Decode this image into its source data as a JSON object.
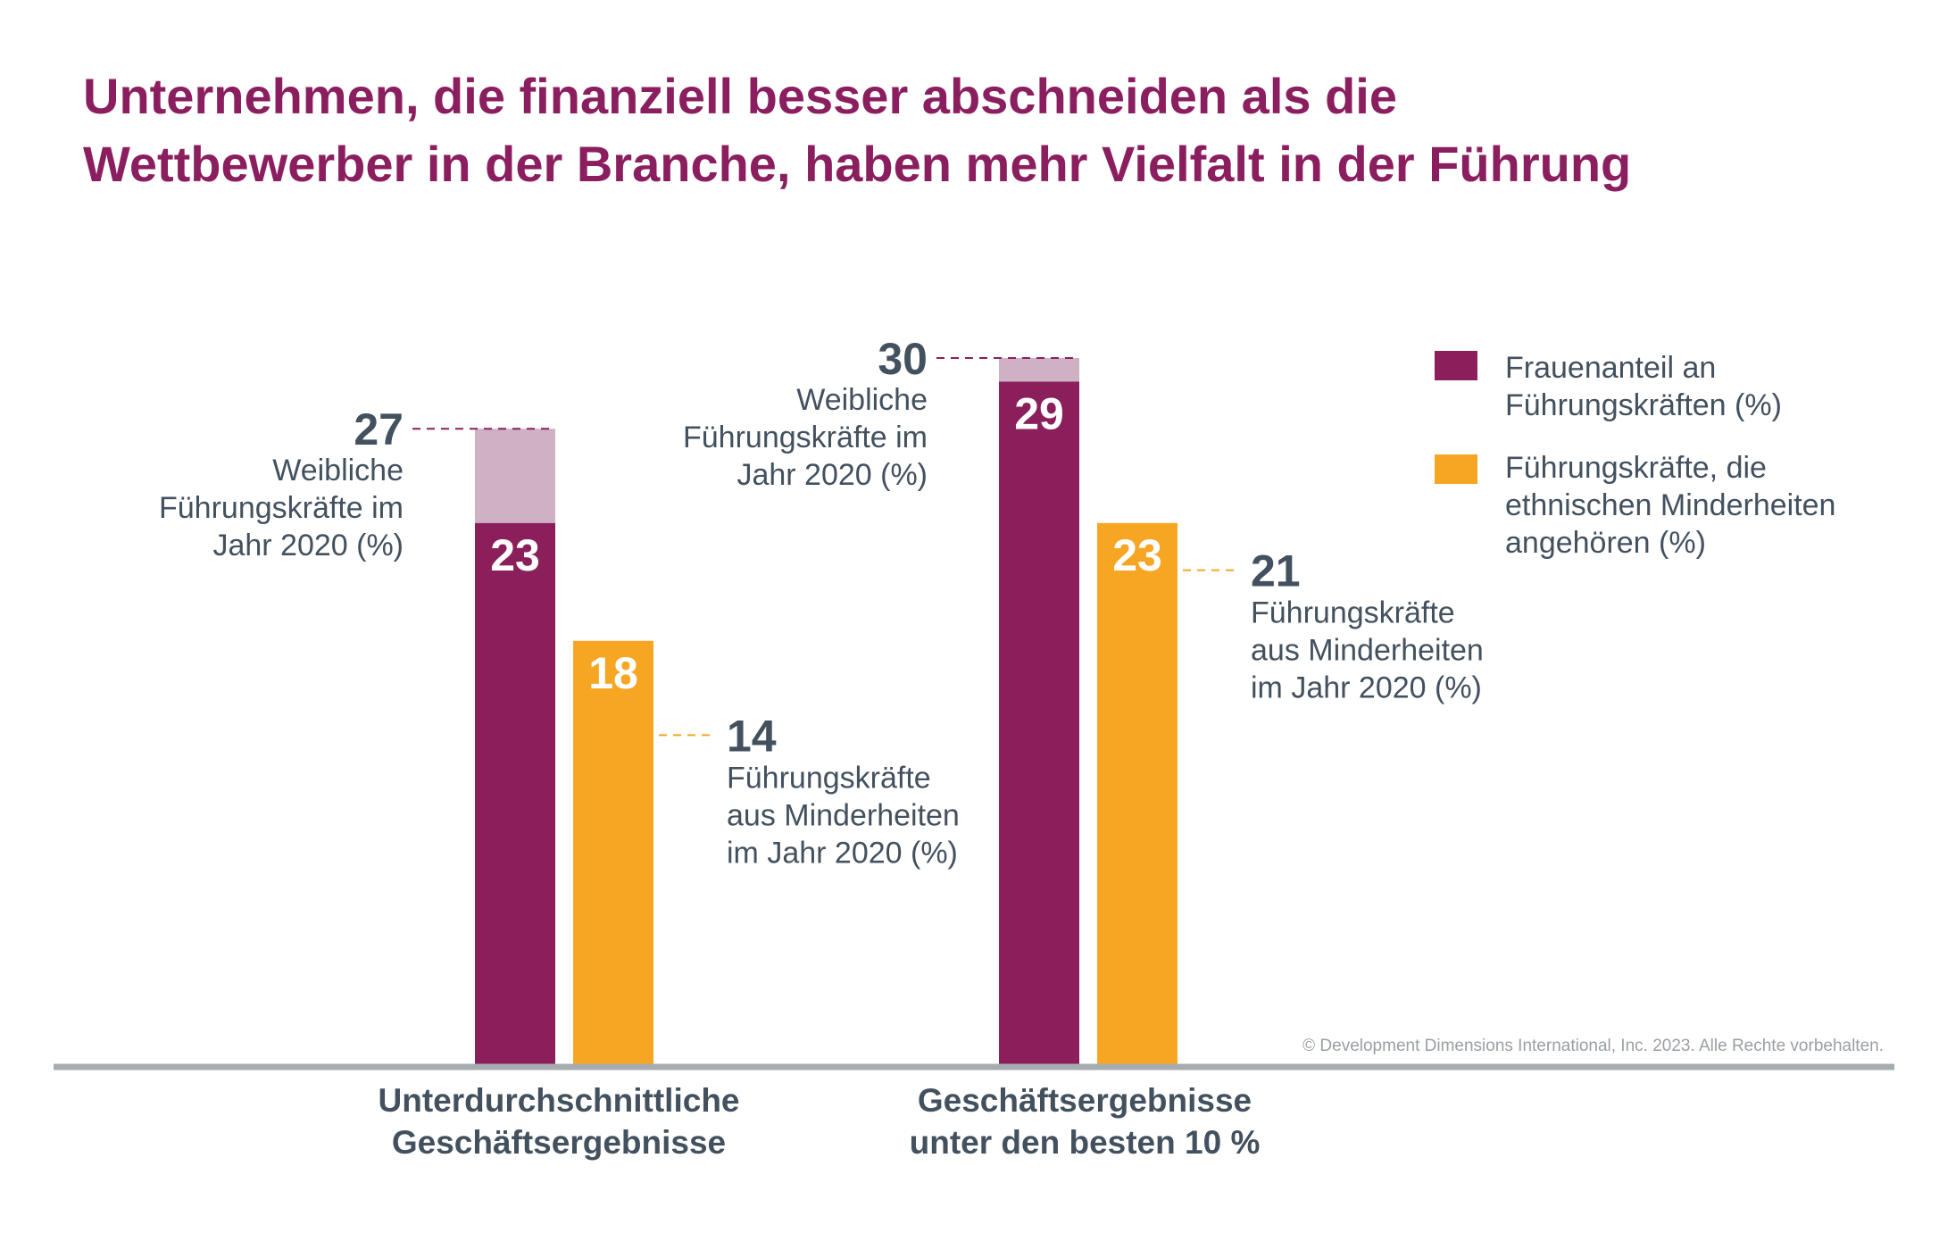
{
  "colors": {
    "title": "#8b1e5f",
    "women": "#8a1f5c",
    "women_prior": "#cfb1c4",
    "minorities": "#f7a623",
    "text": "#43515f",
    "baseline": "#a7acb1",
    "white": "#ffffff"
  },
  "chart_data": {
    "type": "bar",
    "title": "Unternehmen, die finanziell besser abschneiden als die Wettbewerber in der Branche, haben mehr Vielfalt in der Führung",
    "title_lines": [
      "Unternehmen, die finanziell besser abschneiden als die",
      "Wettbewerber in der Branche, haben mehr Vielfalt in der Führung"
    ],
    "categories": [
      [
        "Unterdurchschnittliche",
        "Geschäftsergebnisse"
      ],
      [
        "Geschäftsergebnisse",
        "unter den besten 10 %"
      ]
    ],
    "ylim": [
      0,
      33
    ],
    "series": [
      {
        "name": "Frauenanteil an Führungskräften (%)",
        "legend_lines": [
          "Frauenanteil an",
          "Führungskräften (%)"
        ],
        "color_key": "women",
        "values": [
          23,
          29
        ],
        "value_labels": [
          "23",
          "29"
        ],
        "prior_values": [
          27,
          30
        ],
        "prior_labels": [
          "27",
          "30"
        ],
        "prior_note_lines": [
          "Weibliche",
          "Führungskräfte im",
          "Jahr 2020 (%)"
        ]
      },
      {
        "name": "Führungskräfte, die ethnischen Minderheiten angehören (%)",
        "legend_lines": [
          "Führungskräfte, die",
          "ethnischen Minderheiten",
          "angehören (%)"
        ],
        "color_key": "minorities",
        "values": [
          18,
          23
        ],
        "value_labels": [
          "18",
          "23"
        ],
        "prior_values": [
          14,
          21
        ],
        "prior_labels": [
          "14",
          "21"
        ],
        "prior_note_lines": [
          "Führungskräfte",
          "aus Minderheiten",
          "im Jahr 2020 (%)"
        ]
      }
    ],
    "copyright": "© Development Dimensions International, Inc. 2023. Alle Rechte vorbehalten."
  }
}
